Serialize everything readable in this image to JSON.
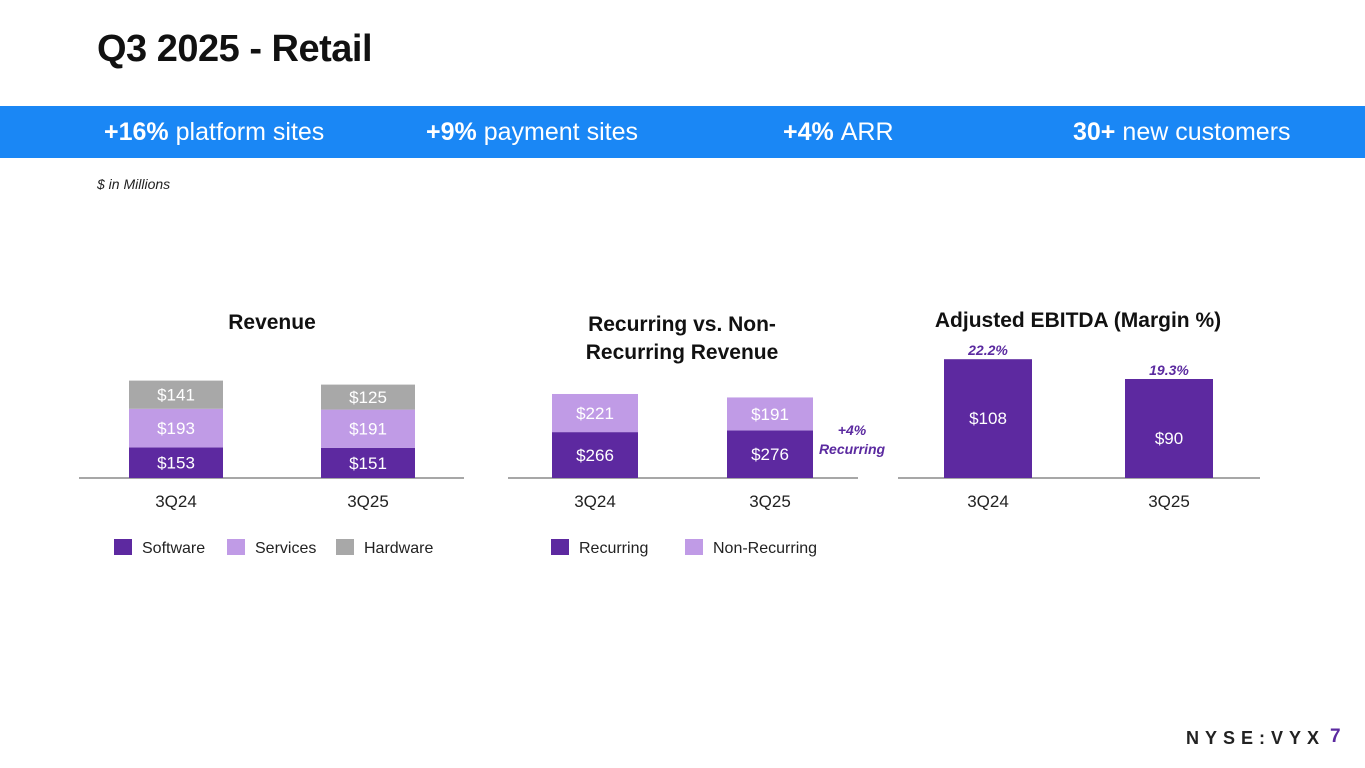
{
  "title": "Q3 2025 - Retail",
  "banner": [
    {
      "num": "+16%",
      "label": "platform sites"
    },
    {
      "num": "+9%",
      "label": "payment sites"
    },
    {
      "num": "+4%",
      "label": "ARR"
    },
    {
      "num": "30+",
      "label": "new customers"
    }
  ],
  "units_note": "$ in Millions",
  "colors": {
    "banner": "#1a87f5",
    "software": "#5d29a0",
    "services": "#c09be6",
    "hardware": "#a8a8a8",
    "recurring": "#5d29a0",
    "non_recurring": "#c09be6",
    "ebitda": "#5d29a0",
    "annotation": "#5b2aa0"
  },
  "chart_data": [
    {
      "type": "bar",
      "stacked": true,
      "title": "Revenue",
      "categories": [
        "3Q24",
        "3Q25"
      ],
      "series": [
        {
          "name": "Software",
          "values": [
            153,
            151
          ],
          "labels": [
            "$153",
            "$151"
          ]
        },
        {
          "name": "Services",
          "values": [
            193,
            191
          ],
          "labels": [
            "$193",
            "$191"
          ]
        },
        {
          "name": "Hardware",
          "values": [
            141,
            125
          ],
          "labels": [
            "$141",
            "$125"
          ]
        }
      ],
      "legend_position": "bottom"
    },
    {
      "type": "bar",
      "stacked": true,
      "title": "Recurring vs. Non-Recurring Revenue",
      "title_lines": [
        "Recurring vs. Non-",
        "Recurring Revenue"
      ],
      "categories": [
        "3Q24",
        "3Q25"
      ],
      "series": [
        {
          "name": "Recurring",
          "values": [
            266,
            276
          ],
          "labels": [
            "$266",
            "$276"
          ]
        },
        {
          "name": "Non-Recurring",
          "values": [
            221,
            191
          ],
          "labels": [
            "$221",
            "$191"
          ]
        }
      ],
      "annotation": [
        "+4%",
        "Recurring"
      ],
      "legend_position": "bottom"
    },
    {
      "type": "bar",
      "stacked": false,
      "title": "Adjusted EBITDA (Margin %)",
      "categories": [
        "3Q24",
        "3Q25"
      ],
      "values": [
        108,
        90
      ],
      "labels": [
        "$108",
        "$90"
      ],
      "margins": [
        "22.2%",
        "19.3%"
      ]
    }
  ],
  "footer": {
    "brand": "NYSE:VYX",
    "page": "7"
  }
}
